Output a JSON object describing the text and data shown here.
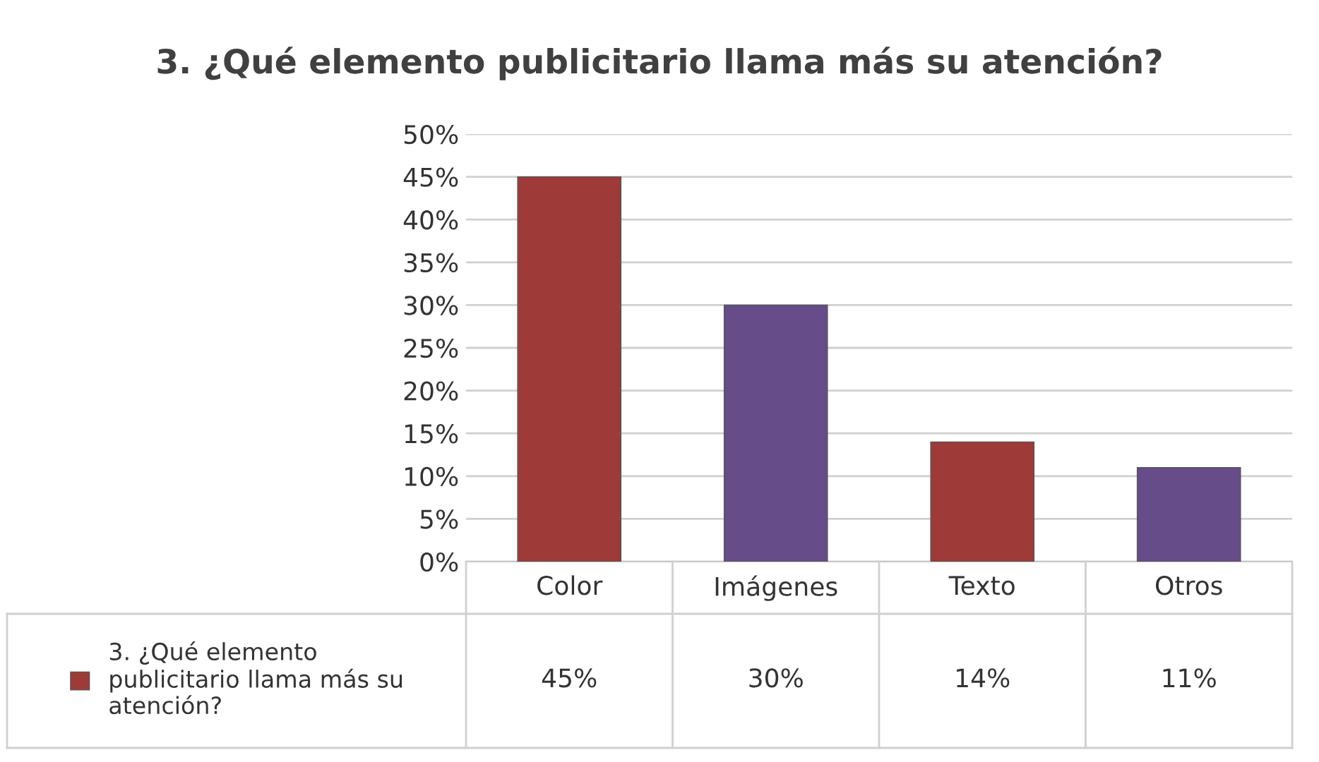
{
  "chart_data": {
    "type": "bar",
    "title": "3. ¿Qué elemento publicitario llama más su atención?",
    "categories": [
      "Color",
      "Imágenes",
      "Texto",
      "Otros"
    ],
    "series": [
      {
        "name": "3. ¿Qué elemento publicitario llama más su atención?",
        "colors": [
          "#9e3a38",
          "#664c88",
          "#9e3a38",
          "#664c88"
        ],
        "values": [
          45,
          30,
          14,
          11
        ],
        "value_labels": [
          "45%",
          "30%",
          "14%",
          "11%"
        ]
      }
    ],
    "ylim": [
      0,
      50
    ],
    "yticks": [
      {
        "value": 0,
        "label": "0%"
      },
      {
        "value": 5,
        "label": "5%"
      },
      {
        "value": 10,
        "label": "10%"
      },
      {
        "value": 15,
        "label": "15%"
      },
      {
        "value": 20,
        "label": "20%"
      },
      {
        "value": 25,
        "label": "25%"
      },
      {
        "value": 30,
        "label": "30%"
      },
      {
        "value": 35,
        "label": "35%"
      },
      {
        "value": 40,
        "label": "40%"
      },
      {
        "value": 45,
        "label": "45%"
      },
      {
        "value": 50,
        "label": "50%"
      }
    ],
    "grid": "y",
    "legend": "bottom left"
  }
}
